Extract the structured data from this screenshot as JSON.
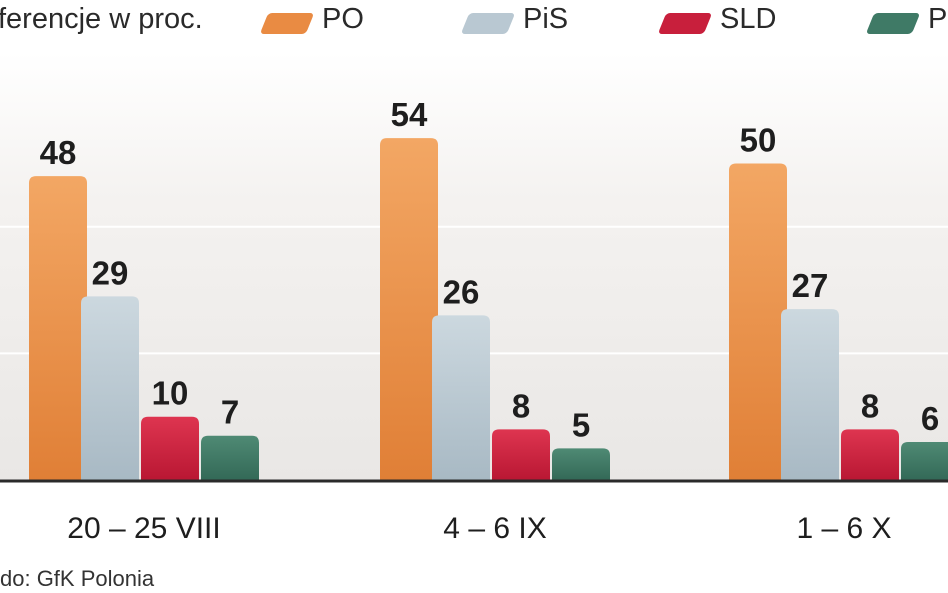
{
  "header": {
    "subtitle": "ferencje w proc."
  },
  "legend": [
    {
      "label": "PO",
      "color": "#e98b43"
    },
    {
      "label": "PiS",
      "color": "#b9c8d2"
    },
    {
      "label": "SLD",
      "color": "#c81f3c"
    },
    {
      "label": "P",
      "color": "#3f7a66"
    }
  ],
  "source": "do: GfK Polonia",
  "chart_data": {
    "type": "bar",
    "categories": [
      "20 – 25 VIII",
      "4 – 6 IX",
      "1 – 6 X"
    ],
    "series": [
      {
        "name": "PO",
        "color": "#e98b43",
        "values": [
          48,
          54,
          50
        ]
      },
      {
        "name": "PiS",
        "color": "#b9c8d2",
        "values": [
          29,
          26,
          27
        ]
      },
      {
        "name": "SLD",
        "color": "#c81f3c",
        "values": [
          10,
          8,
          8
        ]
      },
      {
        "name": "P",
        "color": "#3f7a66",
        "values": [
          7,
          5,
          6
        ]
      }
    ],
    "ylim": [
      0,
      60
    ],
    "grid": true,
    "legend_position": "top"
  }
}
